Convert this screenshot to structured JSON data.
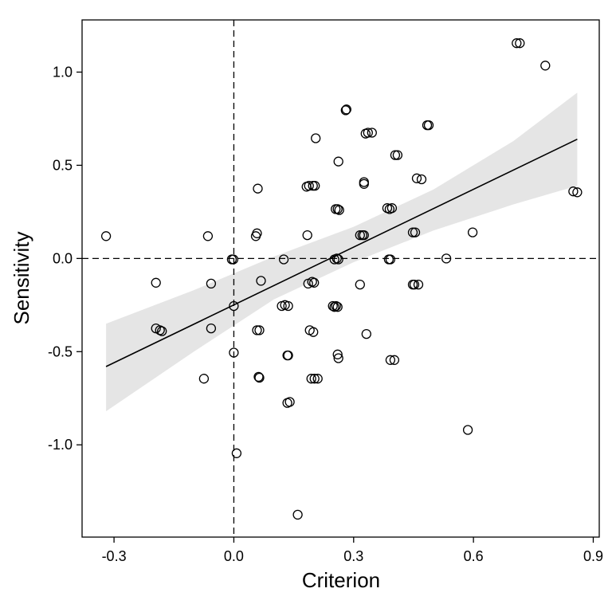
{
  "chart_data": {
    "type": "scatter",
    "title": "",
    "xlabel": "Criterion",
    "ylabel": "Sensitivity",
    "xlim": [
      -0.38,
      0.915
    ],
    "ylim": [
      -1.495,
      1.28
    ],
    "x_ticks": [
      -0.3,
      0.0,
      0.3,
      0.6,
      0.9
    ],
    "x_tick_labels": [
      "-0.3",
      "0.0",
      "0.3",
      "0.6",
      "0.9"
    ],
    "y_ticks": [
      -1.0,
      -0.5,
      0.0,
      0.5,
      1.0
    ],
    "y_tick_labels": [
      "-1.0",
      "-0.5",
      "0.0",
      "0.5",
      "1.0"
    ],
    "grid": false,
    "reference_lines": {
      "x": 0.0,
      "y": 0.0,
      "style": "dashed"
    },
    "regression": {
      "x": [
        -0.32,
        0.86
      ],
      "y": [
        -0.58,
        0.64
      ],
      "ci_band": {
        "x": [
          -0.32,
          -0.1,
          0.1,
          0.3,
          0.5,
          0.7,
          0.86
        ],
        "lower": [
          -0.82,
          -0.5,
          -0.22,
          -0.02,
          0.15,
          0.29,
          0.39
        ],
        "upper": [
          -0.35,
          -0.17,
          0.01,
          0.17,
          0.37,
          0.63,
          0.89
        ]
      }
    },
    "points": [
      {
        "x": -0.32,
        "y": 0.12
      },
      {
        "x": -0.195,
        "y": -0.13
      },
      {
        "x": -0.195,
        "y": -0.375
      },
      {
        "x": -0.185,
        "y": -0.385
      },
      {
        "x": -0.18,
        "y": -0.39
      },
      {
        "x": -0.075,
        "y": -0.645
      },
      {
        "x": -0.065,
        "y": 0.12
      },
      {
        "x": -0.057,
        "y": -0.375
      },
      {
        "x": -0.057,
        "y": -0.135
      },
      {
        "x": -0.005,
        "y": -0.005
      },
      {
        "x": -0.001,
        "y": -0.005
      },
      {
        "x": 0.0,
        "y": -0.255
      },
      {
        "x": 0.0,
        "y": -0.505
      },
      {
        "x": 0.007,
        "y": -1.045
      },
      {
        "x": 0.055,
        "y": 0.12
      },
      {
        "x": 0.058,
        "y": 0.135
      },
      {
        "x": 0.06,
        "y": 0.375
      },
      {
        "x": 0.058,
        "y": -0.385
      },
      {
        "x": 0.064,
        "y": -0.385
      },
      {
        "x": 0.062,
        "y": -0.635
      },
      {
        "x": 0.064,
        "y": -0.64
      },
      {
        "x": 0.068,
        "y": -0.12
      },
      {
        "x": 0.12,
        "y": -0.255
      },
      {
        "x": 0.128,
        "y": -0.25
      },
      {
        "x": 0.136,
        "y": -0.255
      },
      {
        "x": 0.136,
        "y": -0.52
      },
      {
        "x": 0.134,
        "y": -0.52
      },
      {
        "x": 0.134,
        "y": -0.775
      },
      {
        "x": 0.14,
        "y": -0.77
      },
      {
        "x": 0.125,
        "y": -0.005
      },
      {
        "x": 0.16,
        "y": -1.375
      },
      {
        "x": 0.182,
        "y": 0.385
      },
      {
        "x": 0.188,
        "y": 0.39
      },
      {
        "x": 0.198,
        "y": 0.39
      },
      {
        "x": 0.203,
        "y": 0.39
      },
      {
        "x": 0.184,
        "y": 0.125
      },
      {
        "x": 0.186,
        "y": -0.135
      },
      {
        "x": 0.196,
        "y": -0.125
      },
      {
        "x": 0.201,
        "y": -0.13
      },
      {
        "x": 0.19,
        "y": -0.385
      },
      {
        "x": 0.199,
        "y": -0.395
      },
      {
        "x": 0.194,
        "y": -0.645
      },
      {
        "x": 0.202,
        "y": -0.645
      },
      {
        "x": 0.21,
        "y": -0.645
      },
      {
        "x": 0.205,
        "y": 0.645
      },
      {
        "x": 0.255,
        "y": 0.265
      },
      {
        "x": 0.26,
        "y": 0.265
      },
      {
        "x": 0.264,
        "y": 0.26
      },
      {
        "x": 0.262,
        "y": 0.52
      },
      {
        "x": 0.252,
        "y": -0.005
      },
      {
        "x": 0.258,
        "y": 0.0
      },
      {
        "x": 0.262,
        "y": -0.005
      },
      {
        "x": 0.248,
        "y": -0.255
      },
      {
        "x": 0.252,
        "y": -0.26
      },
      {
        "x": 0.256,
        "y": -0.255
      },
      {
        "x": 0.26,
        "y": -0.26
      },
      {
        "x": 0.26,
        "y": -0.515
      },
      {
        "x": 0.262,
        "y": -0.535
      },
      {
        "x": 0.28,
        "y": 0.795
      },
      {
        "x": 0.282,
        "y": 0.8
      },
      {
        "x": 0.316,
        "y": 0.125
      },
      {
        "x": 0.322,
        "y": 0.125
      },
      {
        "x": 0.326,
        "y": 0.125
      },
      {
        "x": 0.326,
        "y": 0.4
      },
      {
        "x": 0.326,
        "y": 0.41
      },
      {
        "x": 0.33,
        "y": 0.67
      },
      {
        "x": 0.336,
        "y": 0.675
      },
      {
        "x": 0.346,
        "y": 0.675
      },
      {
        "x": 0.316,
        "y": -0.14
      },
      {
        "x": 0.332,
        "y": -0.405
      },
      {
        "x": 0.384,
        "y": 0.27
      },
      {
        "x": 0.39,
        "y": 0.265
      },
      {
        "x": 0.396,
        "y": 0.27
      },
      {
        "x": 0.388,
        "y": -0.005
      },
      {
        "x": 0.392,
        "y": -0.005
      },
      {
        "x": 0.392,
        "y": -0.545
      },
      {
        "x": 0.402,
        "y": -0.545
      },
      {
        "x": 0.404,
        "y": 0.555
      },
      {
        "x": 0.41,
        "y": 0.555
      },
      {
        "x": 0.448,
        "y": 0.14
      },
      {
        "x": 0.454,
        "y": 0.14
      },
      {
        "x": 0.448,
        "y": -0.14
      },
      {
        "x": 0.452,
        "y": -0.14
      },
      {
        "x": 0.462,
        "y": -0.14
      },
      {
        "x": 0.458,
        "y": 0.43
      },
      {
        "x": 0.47,
        "y": 0.425
      },
      {
        "x": 0.484,
        "y": 0.715
      },
      {
        "x": 0.488,
        "y": 0.715
      },
      {
        "x": 0.532,
        "y": 0.0
      },
      {
        "x": 0.586,
        "y": -0.92
      },
      {
        "x": 0.598,
        "y": 0.14
      },
      {
        "x": 0.708,
        "y": 1.155
      },
      {
        "x": 0.716,
        "y": 1.155
      },
      {
        "x": 0.78,
        "y": 1.035
      },
      {
        "x": 0.85,
        "y": 0.36
      },
      {
        "x": 0.86,
        "y": 0.355
      }
    ]
  }
}
